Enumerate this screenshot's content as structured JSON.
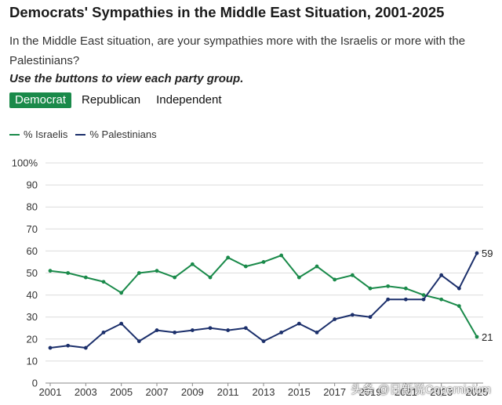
{
  "header": {
    "title": "Democrats' Sympathies in the Middle East Situation, 2001-2025",
    "subtitle": "In the Middle East situation, are your sympathies more with the Israelis or more with the Palestinians?",
    "instruction": "Use the buttons to view each party group."
  },
  "tabs": [
    {
      "label": "Democrat",
      "active": true
    },
    {
      "label": "Republican",
      "active": false
    },
    {
      "label": "Independent",
      "active": false
    }
  ],
  "colors": {
    "israelis": "#1a8a4a",
    "palestinians": "#1b2f6b",
    "grid": "#dcdcdc",
    "axis": "#888888"
  },
  "watermark": "头条 @日新说Copernicium",
  "chart_data": {
    "type": "line",
    "title": "Democrats' Sympathies in the Middle East Situation, 2001-2025",
    "x": [
      2001,
      2002,
      2003,
      2004,
      2005,
      2006,
      2007,
      2008,
      2009,
      2010,
      2011,
      2012,
      2013,
      2014,
      2015,
      2016,
      2017,
      2018,
      2019,
      2020,
      2021,
      2022,
      2023,
      2024,
      2025
    ],
    "x_ticks": [
      "2001",
      "2003",
      "2005",
      "2007",
      "2009",
      "2011",
      "2013",
      "2015",
      "2017",
      "2019",
      "2021",
      "2023",
      "2025"
    ],
    "y_ticks": [
      "0",
      "10",
      "20",
      "30",
      "40",
      "50",
      "60",
      "70",
      "80",
      "90",
      "100%"
    ],
    "ylim": [
      0,
      100
    ],
    "grid": true,
    "legend_position": "top-left",
    "series": [
      {
        "name": "% Israelis",
        "color": "#1a8a4a",
        "values": [
          51,
          50,
          48,
          46,
          41,
          50,
          51,
          48,
          54,
          48,
          57,
          53,
          55,
          58,
          48,
          53,
          47,
          49,
          43,
          44,
          43,
          40,
          38,
          35,
          21
        ],
        "end_label": "21"
      },
      {
        "name": "% Palestinians",
        "color": "#1b2f6b",
        "values": [
          16,
          17,
          16,
          23,
          27,
          19,
          24,
          23,
          24,
          25,
          24,
          25,
          19,
          23,
          27,
          23,
          29,
          31,
          30,
          38,
          38,
          38,
          49,
          43,
          59
        ],
        "end_label": "59"
      }
    ]
  }
}
